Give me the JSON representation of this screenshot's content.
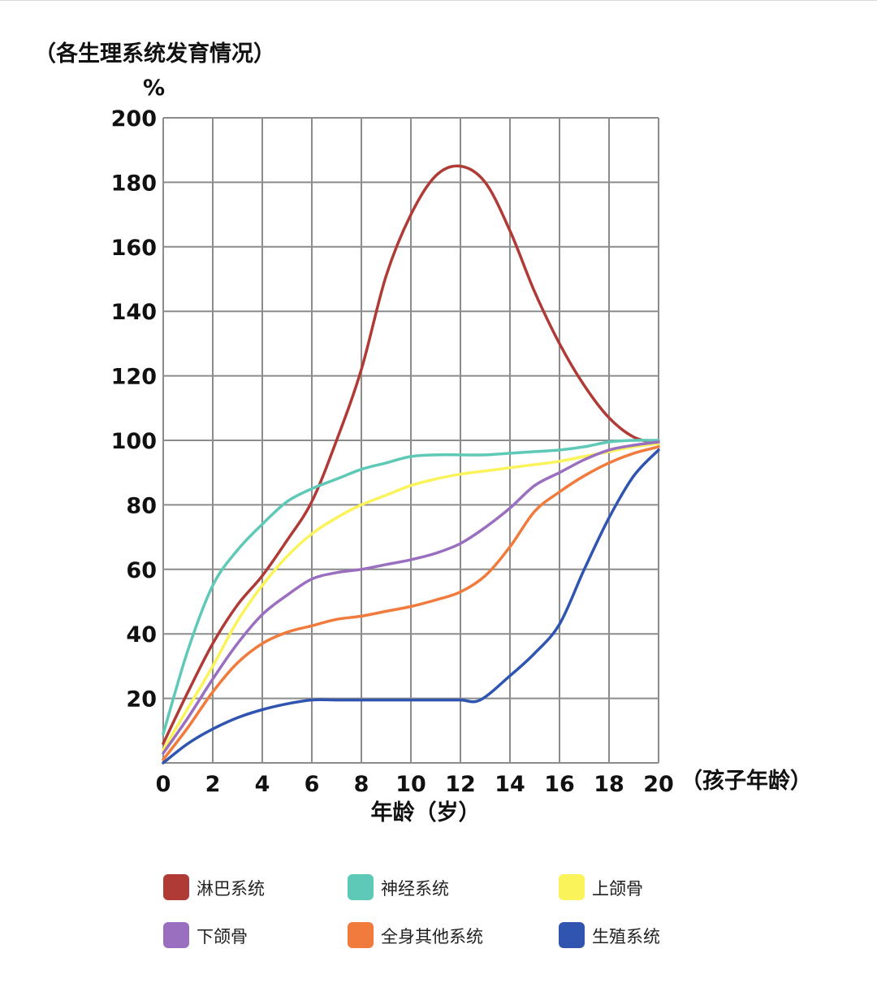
{
  "chart_data": {
    "type": "line",
    "title": "（各生理系统发育情况）",
    "y_unit": "%",
    "xlabel": "年龄（岁）",
    "x_axis_end_label": "（孩子年龄）",
    "xlim": [
      0,
      20
    ],
    "ylim": [
      0,
      200
    ],
    "x_ticks": [
      0,
      2,
      4,
      6,
      8,
      10,
      12,
      14,
      16,
      18,
      20
    ],
    "y_ticks": [
      20,
      40,
      60,
      80,
      100,
      120,
      140,
      160,
      180,
      200
    ],
    "grid": true,
    "legend_position": "bottom",
    "series": [
      {
        "name": "淋巴系统",
        "color": "#b03a35",
        "points": [
          [
            0,
            6
          ],
          [
            1,
            22
          ],
          [
            2,
            37
          ],
          [
            3,
            49
          ],
          [
            4,
            58
          ],
          [
            5,
            69
          ],
          [
            6,
            81
          ],
          [
            7,
            100
          ],
          [
            8,
            122
          ],
          [
            9,
            151
          ],
          [
            10,
            170
          ],
          [
            11,
            182
          ],
          [
            12,
            185
          ],
          [
            13,
            180
          ],
          [
            14,
            165
          ],
          [
            15,
            146
          ],
          [
            16,
            130
          ],
          [
            17,
            117
          ],
          [
            18,
            107
          ],
          [
            19,
            101
          ],
          [
            20,
            99
          ]
        ]
      },
      {
        "name": "神经系统",
        "color": "#5fc9b8",
        "points": [
          [
            0,
            9
          ],
          [
            1,
            35
          ],
          [
            2,
            55
          ],
          [
            3,
            66
          ],
          [
            4,
            74
          ],
          [
            5,
            81
          ],
          [
            6,
            85
          ],
          [
            7,
            88
          ],
          [
            8,
            91
          ],
          [
            9,
            93
          ],
          [
            10,
            95
          ],
          [
            11,
            95.5
          ],
          [
            12,
            95.5
          ],
          [
            13,
            95.5
          ],
          [
            14,
            96
          ],
          [
            15,
            96.5
          ],
          [
            16,
            97
          ],
          [
            17,
            98
          ],
          [
            18,
            99.5
          ],
          [
            19,
            100
          ],
          [
            20,
            100
          ]
        ]
      },
      {
        "name": "上颌骨",
        "color": "#fbf35a",
        "points": [
          [
            0,
            4
          ],
          [
            1,
            17
          ],
          [
            2,
            30
          ],
          [
            3,
            44
          ],
          [
            4,
            55
          ],
          [
            5,
            64
          ],
          [
            6,
            71
          ],
          [
            7,
            76
          ],
          [
            8,
            80
          ],
          [
            9,
            83
          ],
          [
            10,
            86
          ],
          [
            11,
            88
          ],
          [
            12,
            89.5
          ],
          [
            13,
            90.5
          ],
          [
            14,
            91.5
          ],
          [
            15,
            92.5
          ],
          [
            16,
            93.5
          ],
          [
            17,
            95
          ],
          [
            18,
            96.5
          ],
          [
            19,
            98
          ],
          [
            20,
            99
          ]
        ]
      },
      {
        "name": "下颌骨",
        "color": "#9a6fc0",
        "points": [
          [
            0,
            3
          ],
          [
            1,
            14
          ],
          [
            2,
            26
          ],
          [
            3,
            37
          ],
          [
            4,
            46
          ],
          [
            5,
            52
          ],
          [
            6,
            57
          ],
          [
            7,
            59
          ],
          [
            8,
            60
          ],
          [
            9,
            61.5
          ],
          [
            10,
            63
          ],
          [
            11,
            65
          ],
          [
            12,
            68
          ],
          [
            13,
            73
          ],
          [
            14,
            79
          ],
          [
            15,
            86
          ],
          [
            16,
            90
          ],
          [
            17,
            94
          ],
          [
            18,
            97
          ],
          [
            19,
            98.5
          ],
          [
            20,
            99.5
          ]
        ]
      },
      {
        "name": "全身其他系统",
        "color": "#f07b3c",
        "points": [
          [
            0,
            1
          ],
          [
            1,
            11
          ],
          [
            2,
            22
          ],
          [
            3,
            31
          ],
          [
            4,
            37
          ],
          [
            5,
            40.5
          ],
          [
            6,
            42.5
          ],
          [
            7,
            44.5
          ],
          [
            8,
            45.5
          ],
          [
            9,
            47
          ],
          [
            10,
            48.5
          ],
          [
            11,
            50.5
          ],
          [
            12,
            53
          ],
          [
            13,
            58
          ],
          [
            14,
            67
          ],
          [
            15,
            78
          ],
          [
            16,
            84
          ],
          [
            17,
            89
          ],
          [
            18,
            93
          ],
          [
            19,
            96
          ],
          [
            20,
            98
          ]
        ]
      },
      {
        "name": "生殖系统",
        "color": "#2f55b0",
        "points": [
          [
            0,
            0
          ],
          [
            1,
            6
          ],
          [
            2,
            10.5
          ],
          [
            3,
            14
          ],
          [
            4,
            16.5
          ],
          [
            5,
            18.3
          ],
          [
            6,
            19.5
          ],
          [
            7,
            19.5
          ],
          [
            8,
            19.5
          ],
          [
            9,
            19.5
          ],
          [
            10,
            19.5
          ],
          [
            11,
            19.5
          ],
          [
            12,
            19.5
          ],
          [
            12.8,
            19.5
          ],
          [
            14,
            27
          ],
          [
            15,
            34
          ],
          [
            16,
            43
          ],
          [
            17,
            60
          ],
          [
            18,
            76
          ],
          [
            19,
            89
          ],
          [
            20,
            97
          ]
        ]
      }
    ]
  }
}
